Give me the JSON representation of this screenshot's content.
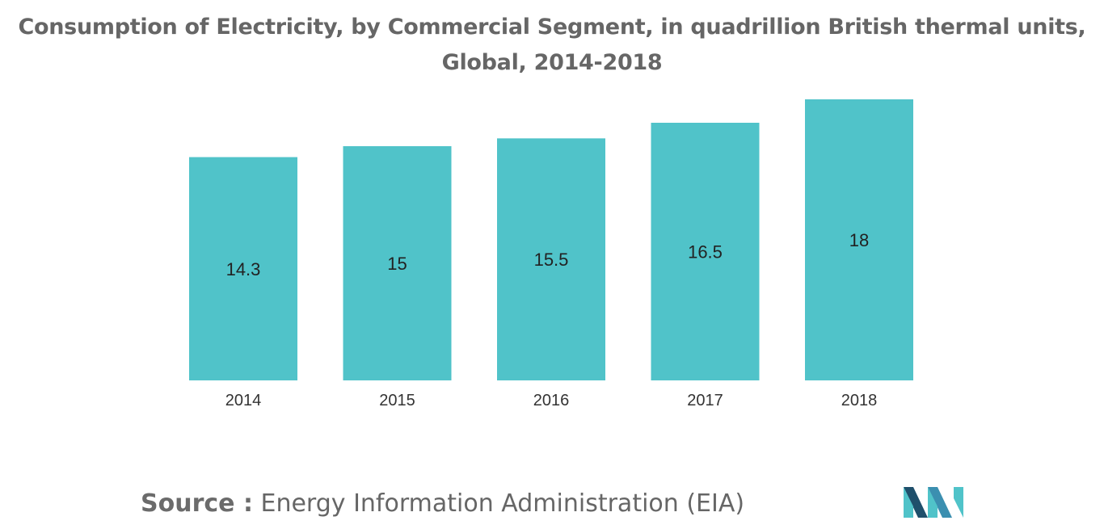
{
  "chart_data": {
    "type": "bar",
    "title": "Consumption of Electricity, by Commercial Segment, in quadrillion British thermal units,",
    "subtitle": "Global, 2014-2018",
    "categories": [
      "2014",
      "2015",
      "2016",
      "2017",
      "2018"
    ],
    "values": [
      14.3,
      15,
      15.5,
      16.5,
      18
    ],
    "value_labels": [
      "14.3",
      "15",
      "15.5",
      "16.5",
      "18"
    ],
    "xlabel": "",
    "ylabel": "",
    "ylim": [
      0,
      18
    ],
    "grid": false,
    "legend": "none",
    "bar_color": "#50c3c9",
    "data_labels_inside": true
  },
  "source": {
    "prefix": "Source :",
    "text": "Energy Information Administration (EIA)"
  },
  "brand": {
    "logo_icon": "mordor-intelligence-logo-icon",
    "colors": [
      "#1f4f6b",
      "#50c3c9",
      "#3b8fb0"
    ]
  }
}
